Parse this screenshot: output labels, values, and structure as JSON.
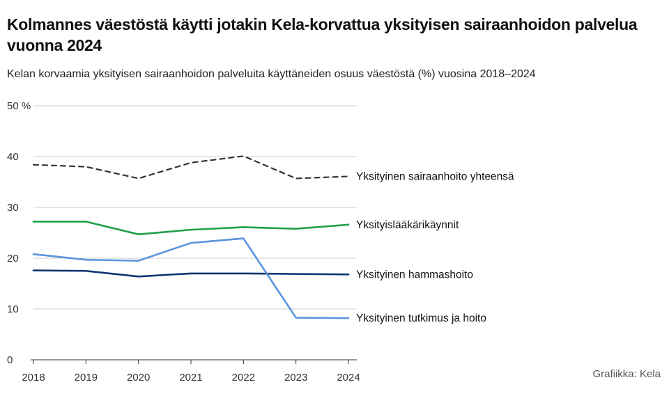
{
  "title": "Kolmannes väestöstä käytti jotakin Kela-korvattua yksityisen sairaanhoidon palvelua vuonna 2024",
  "subtitle": "Kelan korvaamia yksityisen sairaanhoidon palveluita käyttäneiden osuus väestöstä (%) vuosina 2018–2024",
  "source": "Grafiikka: Kela",
  "chart_data": {
    "type": "line",
    "x": [
      2018,
      2019,
      2020,
      2021,
      2022,
      2023,
      2024
    ],
    "ylim": [
      0,
      50
    ],
    "yticks": [
      0,
      10,
      20,
      30,
      40,
      50
    ],
    "ytick_labels": [
      "0",
      "10",
      "20",
      "30",
      "40",
      "50 %"
    ],
    "xtick_labels": [
      "2018",
      "2019",
      "2020",
      "2021",
      "2022",
      "2023",
      "2024"
    ],
    "grid": true,
    "series": [
      {
        "name": "Yksityinen sairaanhoito yhteensä",
        "values": [
          38.4,
          38.0,
          35.7,
          38.8,
          40.1,
          35.7,
          36.1
        ],
        "color": "#333333",
        "dashed": true
      },
      {
        "name": "Yksityislääkärikäynnit",
        "values": [
          27.2,
          27.2,
          24.7,
          25.6,
          26.1,
          25.8,
          26.6
        ],
        "color": "#1fa049",
        "dashed": false
      },
      {
        "name": "Yksityinen hammashoito",
        "values": [
          17.6,
          17.5,
          16.4,
          17.0,
          17.0,
          16.9,
          16.8
        ],
        "color": "#0b3572",
        "dashed": false
      },
      {
        "name": "Yksityinen tutkimus ja hoito",
        "values": [
          20.8,
          19.7,
          19.5,
          23.0,
          23.9,
          8.3,
          8.2
        ],
        "color": "#5b95dc",
        "dashed": false
      }
    ],
    "label_offsets": [
      0,
      0,
      0,
      0
    ]
  }
}
